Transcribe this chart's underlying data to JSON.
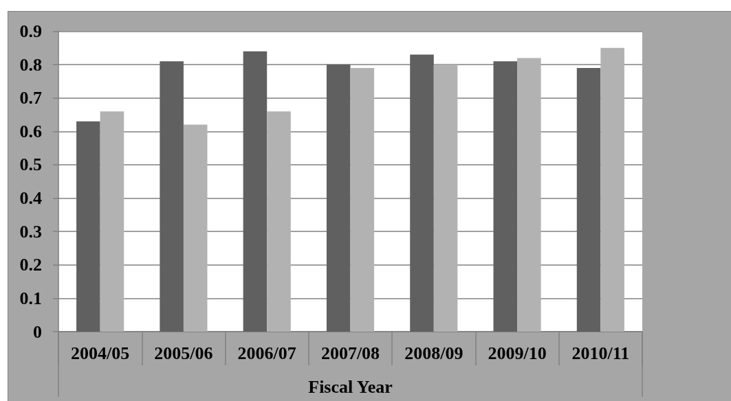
{
  "chart_data": {
    "type": "bar",
    "xlabel": "Fiscal Year",
    "categories": [
      "2004/05",
      "2005/06",
      "2006/07",
      "2007/08",
      "2008/09",
      "2009/10",
      "2010/11"
    ],
    "series": [
      {
        "color": "#606060",
        "values": [
          0.63,
          0.81,
          0.84,
          0.8,
          0.83,
          0.81,
          0.79
        ]
      },
      {
        "color": "#b2b2b2",
        "values": [
          0.66,
          0.62,
          0.66,
          0.79,
          0.8,
          0.82,
          0.85
        ]
      }
    ],
    "ylim": [
      0,
      0.9
    ],
    "yticks": [
      0,
      0.1,
      0.2,
      0.3,
      0.4,
      0.5,
      0.6,
      0.7,
      0.8,
      0.9
    ],
    "grid": "y"
  }
}
